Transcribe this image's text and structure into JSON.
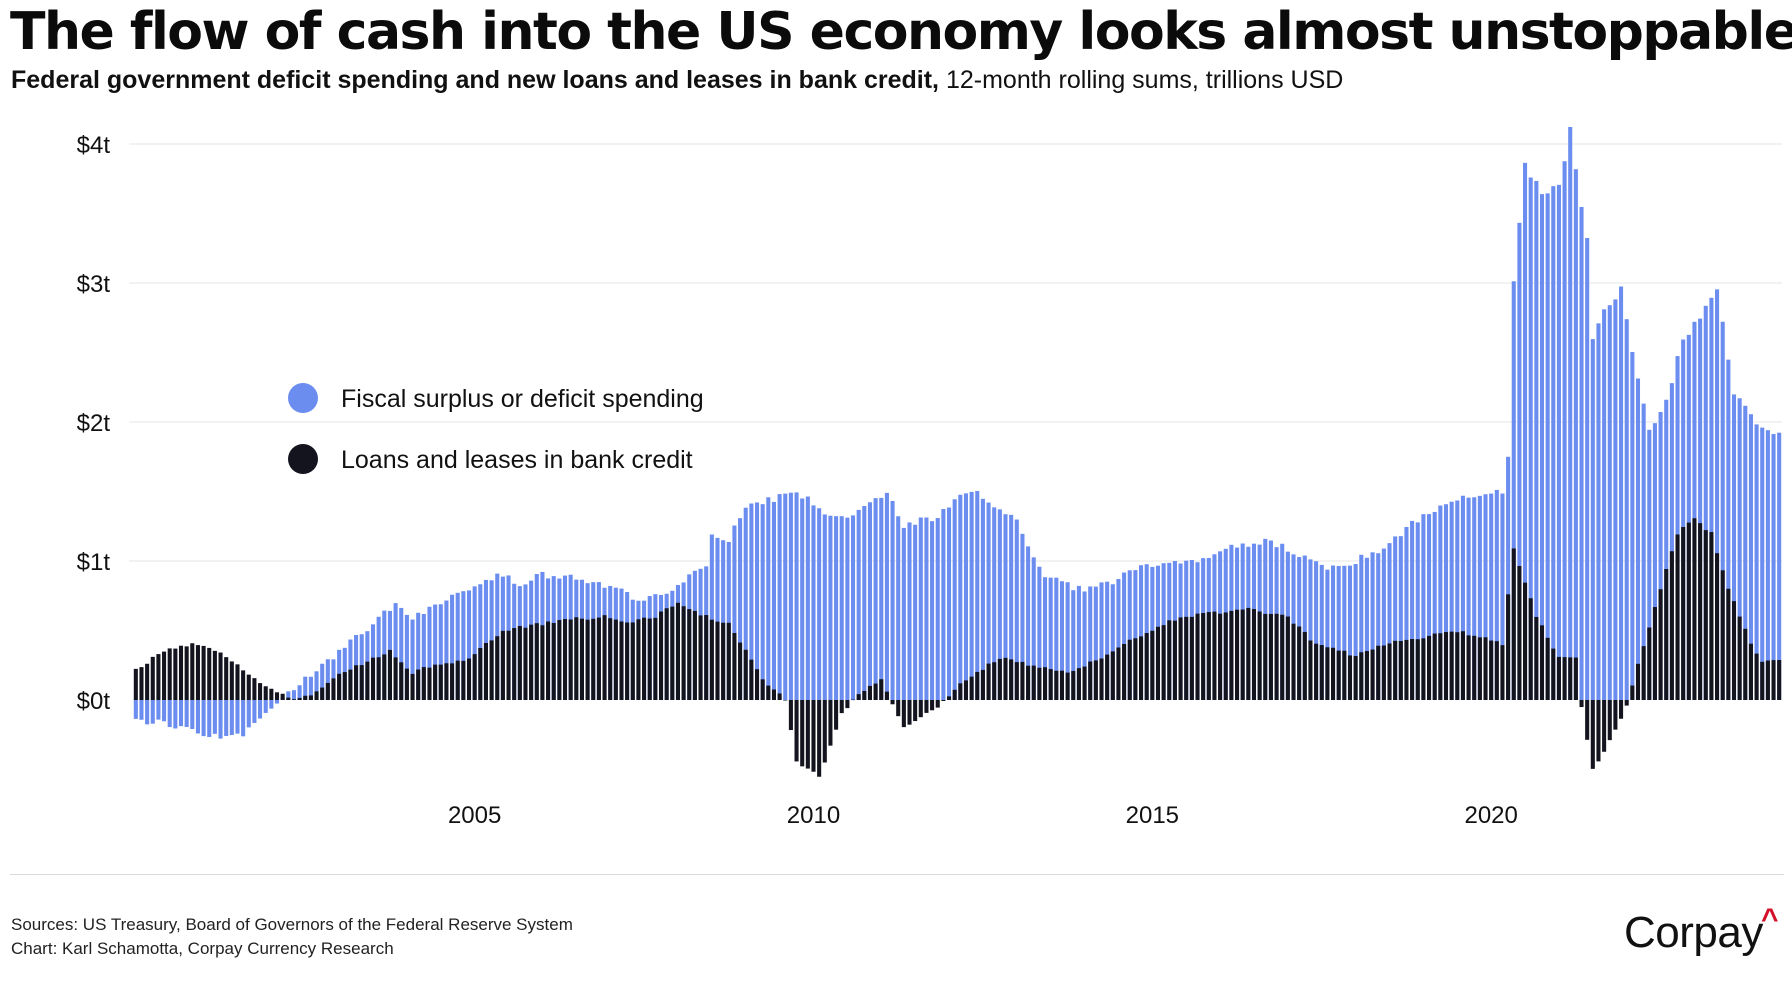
{
  "header": {
    "title": "The flow of cash into the US economy looks almost unstoppable.",
    "subtitle_bold": "Federal government deficit spending and new loans and leases in bank credit,",
    "subtitle_rest": "12-month rolling sums, trillions USD"
  },
  "footer": {
    "sources": "Sources: US Treasury, Board of Governors of the Federal Reserve System",
    "credit": "Chart: Karl Schamotta, Corpay Currency Research",
    "brand": "Corpay",
    "brand_mark": "^"
  },
  "colors": {
    "fiscal": "#6b8df0",
    "loans": "#14141f",
    "gridline": "#e6e6e6",
    "brand_accent": "#d3122a"
  },
  "chart_data": {
    "type": "bar",
    "stacked": "overlapping",
    "frequency": "monthly",
    "start": "2000-01",
    "end": "2024-04",
    "units": "trillions USD",
    "ylim": [
      -0.6,
      4.1
    ],
    "yticks": [
      0,
      1,
      2,
      3,
      4
    ],
    "ytick_labels": [
      "$0t",
      "$1t",
      "$2t",
      "$3t",
      "$4t"
    ],
    "xticks": [
      2005,
      2010,
      2015,
      2020
    ],
    "xtick_labels": [
      "2005",
      "2010",
      "2015",
      "2020"
    ],
    "grid": true,
    "legend_position": "upper-left",
    "series": [
      {
        "name": "Fiscal surplus or deficit spending",
        "color_key": "fiscal",
        "anchors": [
          [
            "2000-01",
            -0.15
          ],
          [
            "2000-06",
            -0.17
          ],
          [
            "2000-12",
            -0.23
          ],
          [
            "2001-06",
            -0.27
          ],
          [
            "2001-09",
            -0.22
          ],
          [
            "2001-12",
            -0.1
          ],
          [
            "2002-03",
            0.0
          ],
          [
            "2002-06",
            0.12
          ],
          [
            "2002-09",
            0.22
          ],
          [
            "2002-12",
            0.3
          ],
          [
            "2003-04",
            0.45
          ],
          [
            "2003-08",
            0.58
          ],
          [
            "2003-11",
            0.7
          ],
          [
            "2004-02",
            0.6
          ],
          [
            "2004-06",
            0.68
          ],
          [
            "2004-10",
            0.75
          ],
          [
            "2005-03",
            0.87
          ],
          [
            "2005-06",
            0.9
          ],
          [
            "2005-09",
            0.83
          ],
          [
            "2005-12",
            0.9
          ],
          [
            "2006-06",
            0.88
          ],
          [
            "2006-12",
            0.83
          ],
          [
            "2007-03",
            0.82
          ],
          [
            "2007-06",
            0.7
          ],
          [
            "2007-09",
            0.75
          ],
          [
            "2007-12",
            0.8
          ],
          [
            "2008-03",
            0.9
          ],
          [
            "2008-06",
            0.95
          ],
          [
            "2008-07",
            1.2
          ],
          [
            "2008-10",
            1.15
          ],
          [
            "2009-01",
            1.4
          ],
          [
            "2009-06",
            1.45
          ],
          [
            "2009-09",
            1.48
          ],
          [
            "2009-12",
            1.45
          ],
          [
            "2010-03",
            1.35
          ],
          [
            "2010-06",
            1.3
          ],
          [
            "2010-09",
            1.35
          ],
          [
            "2010-12",
            1.45
          ],
          [
            "2011-02",
            1.5
          ],
          [
            "2011-05",
            1.25
          ],
          [
            "2011-08",
            1.3
          ],
          [
            "2011-11",
            1.3
          ],
          [
            "2012-02",
            1.45
          ],
          [
            "2012-06",
            1.5
          ],
          [
            "2012-09",
            1.4
          ],
          [
            "2013-01",
            1.3
          ],
          [
            "2013-03",
            1.1
          ],
          [
            "2013-06",
            0.9
          ],
          [
            "2013-09",
            0.85
          ],
          [
            "2014-01",
            0.78
          ],
          [
            "2014-06",
            0.85
          ],
          [
            "2014-10",
            0.95
          ],
          [
            "2015-03",
            1.0
          ],
          [
            "2015-09",
            1.0
          ],
          [
            "2016-03",
            1.1
          ],
          [
            "2016-09",
            1.15
          ],
          [
            "2017-03",
            1.05
          ],
          [
            "2017-08",
            0.95
          ],
          [
            "2018-01",
            1.0
          ],
          [
            "2018-06",
            1.1
          ],
          [
            "2018-12",
            1.3
          ],
          [
            "2019-06",
            1.45
          ],
          [
            "2019-12",
            1.48
          ],
          [
            "2020-03",
            1.5
          ],
          [
            "2020-04",
            1.75
          ],
          [
            "2020-05",
            3.0
          ],
          [
            "2020-07",
            3.85
          ],
          [
            "2020-10",
            3.65
          ],
          [
            "2021-01",
            3.7
          ],
          [
            "2021-03",
            4.1
          ],
          [
            "2021-06",
            3.3
          ],
          [
            "2021-07",
            2.6
          ],
          [
            "2021-09",
            2.8
          ],
          [
            "2021-12",
            2.95
          ],
          [
            "2022-03",
            2.3
          ],
          [
            "2022-05",
            1.95
          ],
          [
            "2022-08",
            2.15
          ],
          [
            "2022-11",
            2.6
          ],
          [
            "2023-02",
            2.75
          ],
          [
            "2023-05",
            2.95
          ],
          [
            "2023-08",
            2.2
          ],
          [
            "2023-12",
            2.0
          ],
          [
            "2024-04",
            1.9
          ]
        ]
      },
      {
        "name": "Loans and leases in bank credit",
        "color_key": "loans",
        "anchors": [
          [
            "2000-01",
            0.22
          ],
          [
            "2000-06",
            0.35
          ],
          [
            "2000-11",
            0.4
          ],
          [
            "2001-04",
            0.35
          ],
          [
            "2001-09",
            0.18
          ],
          [
            "2001-12",
            0.1
          ],
          [
            "2002-03",
            0.05
          ],
          [
            "2002-05",
            0.0
          ],
          [
            "2002-09",
            0.05
          ],
          [
            "2003-01",
            0.18
          ],
          [
            "2003-06",
            0.28
          ],
          [
            "2003-10",
            0.35
          ],
          [
            "2004-02",
            0.2
          ],
          [
            "2004-06",
            0.25
          ],
          [
            "2004-12",
            0.3
          ],
          [
            "2005-06",
            0.5
          ],
          [
            "2006-01",
            0.55
          ],
          [
            "2006-06",
            0.58
          ],
          [
            "2006-12",
            0.6
          ],
          [
            "2007-04",
            0.55
          ],
          [
            "2007-09",
            0.6
          ],
          [
            "2008-01",
            0.7
          ],
          [
            "2008-06",
            0.6
          ],
          [
            "2008-10",
            0.55
          ],
          [
            "2009-01",
            0.35
          ],
          [
            "2009-04",
            0.15
          ],
          [
            "2009-08",
            0.0
          ],
          [
            "2009-10",
            -0.45
          ],
          [
            "2010-02",
            -0.55
          ],
          [
            "2010-06",
            -0.1
          ],
          [
            "2010-09",
            0.05
          ],
          [
            "2011-01",
            0.15
          ],
          [
            "2011-05",
            -0.2
          ],
          [
            "2011-11",
            -0.05
          ],
          [
            "2012-04",
            0.15
          ],
          [
            "2012-10",
            0.3
          ],
          [
            "2013-04",
            0.25
          ],
          [
            "2013-10",
            0.2
          ],
          [
            "2014-04",
            0.3
          ],
          [
            "2014-10",
            0.45
          ],
          [
            "2015-06",
            0.6
          ],
          [
            "2016-06",
            0.65
          ],
          [
            "2017-01",
            0.6
          ],
          [
            "2017-06",
            0.4
          ],
          [
            "2018-01",
            0.32
          ],
          [
            "2018-06",
            0.4
          ],
          [
            "2019-01",
            0.45
          ],
          [
            "2019-06",
            0.5
          ],
          [
            "2019-12",
            0.45
          ],
          [
            "2020-03",
            0.4
          ],
          [
            "2020-05",
            1.1
          ],
          [
            "2020-09",
            0.6
          ],
          [
            "2021-01",
            0.3
          ],
          [
            "2021-04",
            0.3
          ],
          [
            "2021-05",
            -0.05
          ],
          [
            "2021-07",
            -0.5
          ],
          [
            "2021-10",
            -0.3
          ],
          [
            "2022-01",
            -0.05
          ],
          [
            "2022-04",
            0.4
          ],
          [
            "2022-07",
            0.8
          ],
          [
            "2022-10",
            1.2
          ],
          [
            "2023-01",
            1.3
          ],
          [
            "2023-04",
            1.2
          ],
          [
            "2023-07",
            0.8
          ],
          [
            "2023-11",
            0.4
          ],
          [
            "2024-01",
            0.28
          ],
          [
            "2024-04",
            0.3
          ]
        ]
      }
    ]
  }
}
